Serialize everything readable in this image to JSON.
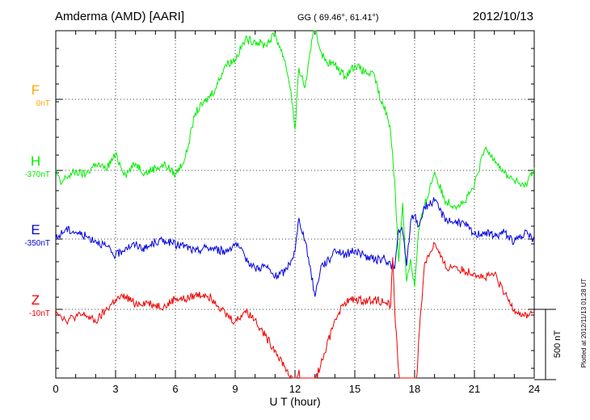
{
  "header": {
    "station": "Amderma (AMD)  [AARI]",
    "coords": "GG ( 69.46°,  61.41°)",
    "date": "2012/10/13"
  },
  "side_note": "Plotted at 2012/11/13 01:28 UT",
  "scale_label": "500 nT",
  "colors": {
    "F": "#ffa500",
    "H": "#00ee00",
    "E": "#0000dd",
    "Z": "#ee0000",
    "axis": "#000000"
  },
  "chart_data": {
    "type": "line",
    "xlabel": "U T (hour)",
    "xlim": [
      0,
      24
    ],
    "xticks": [
      0,
      3,
      6,
      9,
      12,
      15,
      18,
      21,
      24
    ],
    "scale_bar_nT": 500,
    "series": [
      {
        "name": "F",
        "baseline": "0nT",
        "x": [],
        "y": []
      },
      {
        "name": "H",
        "baseline": "-370nT",
        "x": [
          0,
          0.25,
          0.5,
          1,
          1.5,
          2,
          2.5,
          3,
          3.5,
          4,
          4.5,
          5,
          5.5,
          6,
          6.5,
          7,
          7.5,
          8,
          8.5,
          9,
          9.5,
          10,
          10.5,
          11,
          11.5,
          11.8,
          12,
          12.2,
          12.5,
          12.8,
          13,
          13.2,
          13.5,
          14,
          14.5,
          15,
          15.5,
          16,
          16.3,
          16.6,
          16.8,
          17,
          17.2,
          17.4,
          17.6,
          17.8,
          18,
          18.2,
          18.5,
          19,
          19.5,
          20,
          20.5,
          21,
          21.5,
          22,
          22.5,
          23,
          23.5,
          24
        ],
        "y": [
          -370,
          -470,
          -420,
          -380,
          -400,
          -320,
          -360,
          -260,
          -400,
          -320,
          -390,
          -350,
          -330,
          -400,
          -280,
          40,
          120,
          210,
          380,
          420,
          560,
          550,
          520,
          600,
          410,
          190,
          -80,
          360,
          220,
          490,
          680,
          520,
          410,
          380,
          300,
          380,
          330,
          300,
          120,
          40,
          -100,
          -440,
          -1020,
          -600,
          -1160,
          -1000,
          -1200,
          -800,
          -620,
          -380,
          -580,
          -620,
          -600,
          -480,
          -220,
          -280,
          -390,
          -440,
          -490,
          -350
        ]
      },
      {
        "name": "E",
        "baseline": "-350nT",
        "x": [
          0,
          0.5,
          1,
          1.5,
          2,
          2.5,
          3,
          3.5,
          4,
          4.5,
          5,
          5.5,
          6,
          6.5,
          7,
          7.5,
          8,
          8.5,
          9,
          9.5,
          10,
          10.5,
          11,
          11.5,
          11.8,
          12,
          12.2,
          12.5,
          12.8,
          13,
          13.3,
          13.7,
          14,
          14.5,
          15,
          15.5,
          16,
          16.5,
          17,
          17.2,
          17.4,
          17.6,
          17.8,
          18,
          18.2,
          18.5,
          19,
          19.5,
          20,
          20.5,
          21,
          21.5,
          22,
          22.5,
          23,
          23.5,
          24
        ],
        "y": [
          -350,
          -280,
          -300,
          -330,
          -360,
          -400,
          -470,
          -410,
          -390,
          -420,
          -370,
          -360,
          -390,
          -400,
          -440,
          -410,
          -420,
          -440,
          -380,
          -480,
          -560,
          -540,
          -620,
          -580,
          -500,
          -440,
          -200,
          -360,
          -580,
          -760,
          -540,
          -500,
          -420,
          -460,
          -430,
          -470,
          -500,
          -490,
          -560,
          -280,
          -300,
          -540,
          -220,
          -180,
          -260,
          -120,
          -80,
          -200,
          -230,
          -240,
          -320,
          -300,
          -330,
          -300,
          -370,
          -310,
          -350
        ]
      },
      {
        "name": "Z",
        "baseline": "-10nT",
        "x": [
          0,
          0.5,
          1,
          1.5,
          2,
          2.5,
          3,
          3.5,
          4,
          4.5,
          5,
          5.5,
          6,
          6.5,
          7,
          7.5,
          8,
          8.5,
          9,
          9.5,
          10,
          10.5,
          11,
          11.5,
          12,
          12.2,
          12.5,
          12.8,
          13,
          13.5,
          14,
          14.5,
          15,
          15.5,
          16,
          16.5,
          16.8,
          16.9,
          17,
          17.2,
          17.5,
          17.8,
          18,
          18.2,
          18.5,
          18.8,
          19,
          19.3,
          19.6,
          20,
          20.5,
          21,
          21.5,
          22,
          22.5,
          23,
          23.5,
          24
        ],
        "y": [
          -10,
          -90,
          -60,
          -50,
          -100,
          -20,
          60,
          80,
          30,
          40,
          20,
          10,
          70,
          60,
          90,
          100,
          50,
          -40,
          -100,
          -20,
          -80,
          -200,
          -300,
          -420,
          -560,
          -440,
          -1070,
          -620,
          -520,
          -320,
          -80,
          40,
          60,
          50,
          60,
          40,
          20,
          360,
          -10,
          -460,
          -700,
          -1060,
          -880,
          -240,
          320,
          400,
          460,
          360,
          280,
          300,
          260,
          250,
          210,
          240,
          100,
          -10,
          -60,
          -30
        ]
      }
    ]
  }
}
